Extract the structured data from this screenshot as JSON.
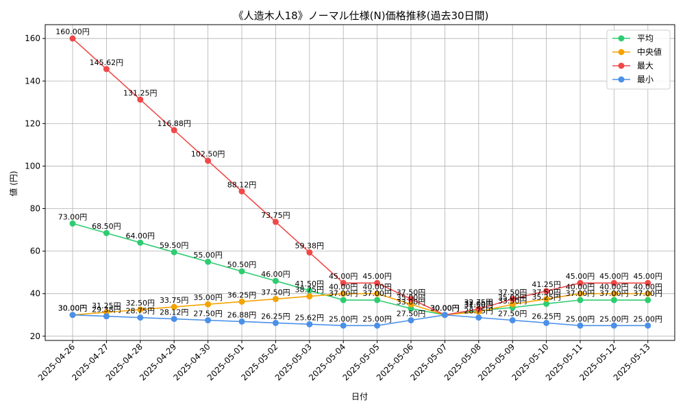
{
  "chart_data": {
    "type": "line",
    "title": "《人造木人18》ノーマル仕様(N)価格推移(過去30日間)",
    "xlabel": "日付",
    "ylabel": "値 (円)",
    "ylim": [
      18,
      166.5
    ],
    "yticks": [
      20,
      40,
      60,
      80,
      100,
      120,
      140,
      160
    ],
    "grid": true,
    "legend_position": "top-right",
    "value_suffix": "円",
    "categories": [
      "2025-04-26",
      "2025-04-27",
      "2025-04-28",
      "2025-04-29",
      "2025-04-30",
      "2025-05-01",
      "2025-05-02",
      "2025-05-03",
      "2025-05-04",
      "2025-05-05",
      "2025-05-06",
      "2025-05-07",
      "2025-05-08",
      "2025-05-09",
      "2025-05-10",
      "2025-05-11",
      "2025-05-12",
      "2025-05-13"
    ],
    "series": [
      {
        "name": "平均",
        "color": "#2ecc71",
        "values": [
          73.0,
          68.5,
          64.0,
          59.5,
          55.0,
          50.5,
          46.0,
          41.5,
          37.0,
          37.0,
          33.0,
          30.0,
          32.0,
          33.5,
          35.25,
          37.0,
          37.0,
          37.0
        ]
      },
      {
        "name": "中央値",
        "color": "#f5a300",
        "values": [
          30.0,
          31.25,
          32.5,
          33.75,
          35.0,
          36.25,
          37.5,
          38.75,
          40.0,
          40.0,
          35.0,
          30.0,
          31.5,
          35.0,
          37.5,
          40.0,
          40.0,
          40.0
        ]
      },
      {
        "name": "最大",
        "color": "#f04848",
        "values": [
          160.0,
          145.62,
          131.25,
          116.88,
          102.5,
          88.12,
          73.75,
          59.38,
          45.0,
          45.0,
          37.5,
          30.0,
          32.75,
          37.5,
          41.25,
          45.0,
          45.0,
          45.0
        ]
      },
      {
        "name": "最小",
        "color": "#4a90e8",
        "values": [
          30.0,
          29.38,
          28.75,
          28.12,
          27.5,
          26.88,
          26.25,
          25.62,
          25.0,
          25.0,
          27.5,
          30.0,
          28.75,
          27.5,
          26.25,
          25.0,
          25.0,
          25.0
        ]
      }
    ]
  }
}
